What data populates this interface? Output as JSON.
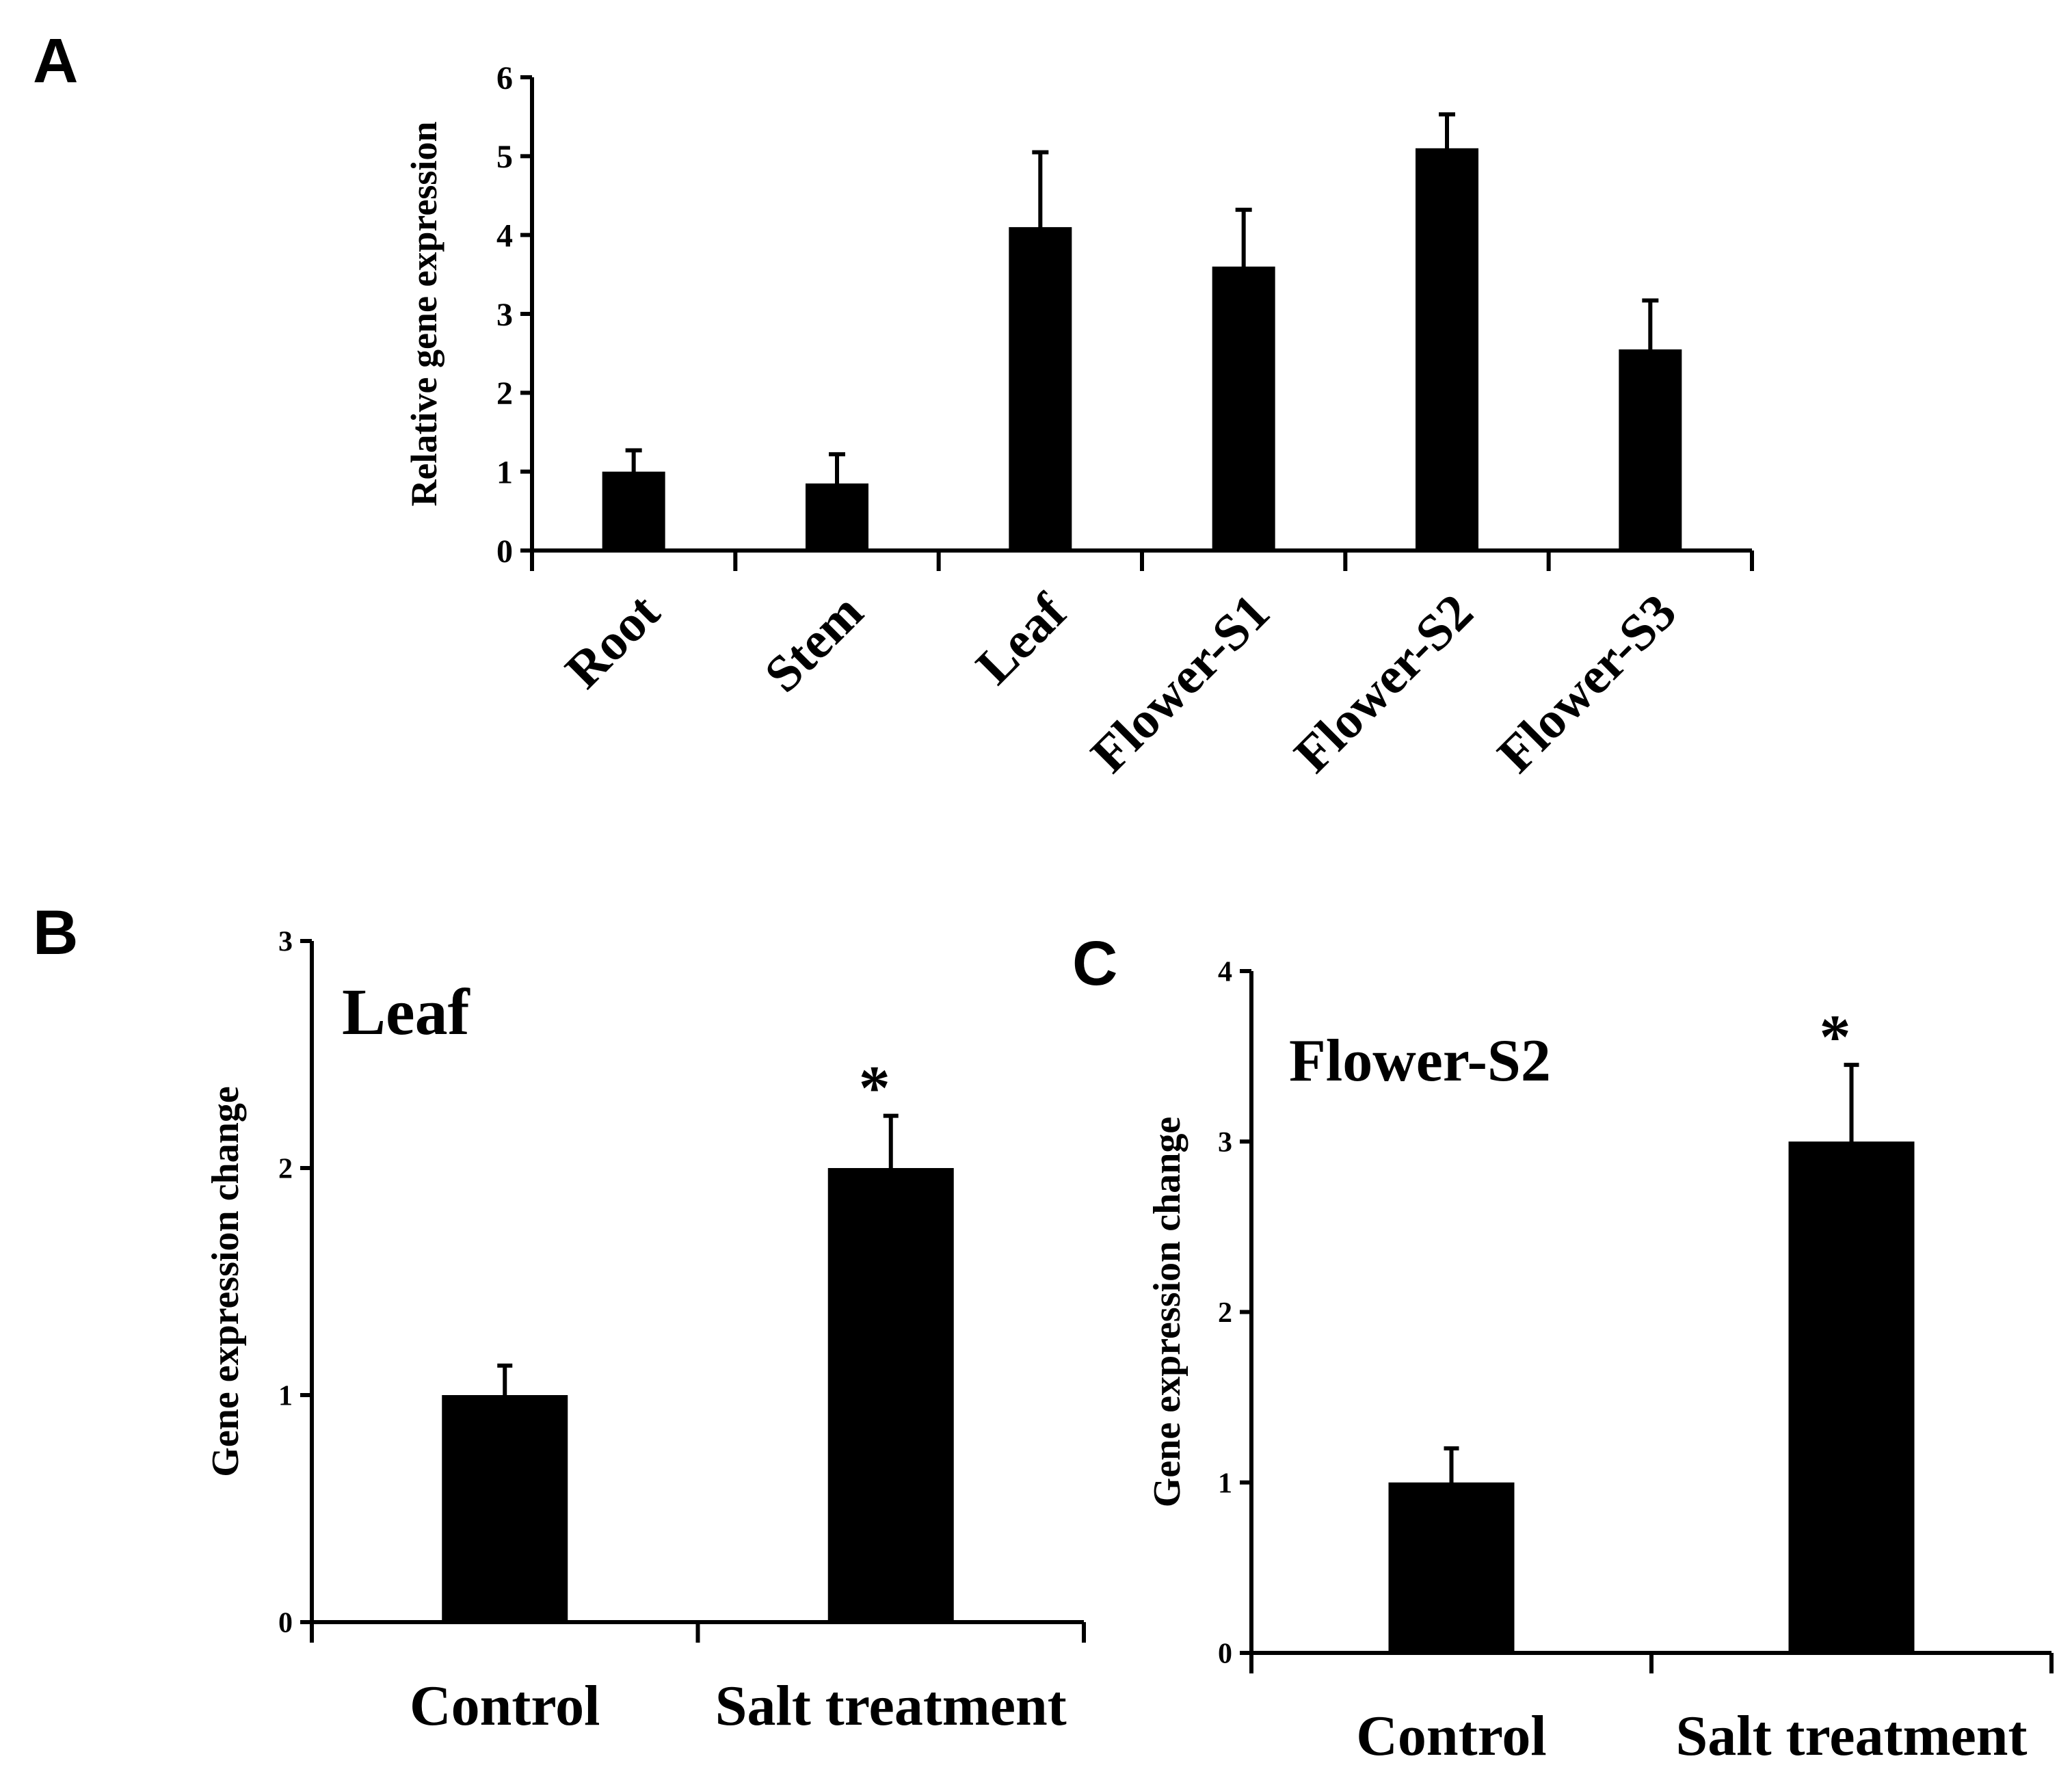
{
  "panels": {
    "A": {
      "letter": "A"
    },
    "B": {
      "letter": "B"
    },
    "C": {
      "letter": "C"
    }
  },
  "chart_data": [
    {
      "type": "bar",
      "panel": "A",
      "title": "",
      "xlabel": "",
      "ylabel": "Relative gene expression",
      "categories": [
        "Root",
        "Stem",
        "Leaf",
        "Flower-S1",
        "Flower-S2",
        "Flower-S3"
      ],
      "values": [
        1.0,
        0.85,
        4.1,
        3.6,
        5.1,
        2.55
      ],
      "errors": [
        0.27,
        0.37,
        0.95,
        0.72,
        0.43,
        0.62
      ],
      "annotations": [
        "",
        "",
        "",
        "",
        "",
        ""
      ],
      "ylim": [
        0,
        6
      ],
      "yticks": [
        "0",
        "1",
        "2",
        "3",
        "4",
        "5",
        "6"
      ],
      "tick_label_rotation": -45,
      "bar_color": "#000000"
    },
    {
      "type": "bar",
      "panel": "B",
      "title": "Leaf",
      "xlabel": "",
      "ylabel": "Gene expression change",
      "categories": [
        "Control",
        "Salt treatment"
      ],
      "values": [
        1.0,
        2.0
      ],
      "errors": [
        0.13,
        0.23
      ],
      "annotations": [
        "",
        "*"
      ],
      "ylim": [
        0,
        3
      ],
      "yticks": [
        "0",
        "1",
        "2",
        "3"
      ],
      "bar_color": "#000000"
    },
    {
      "type": "bar",
      "panel": "C",
      "title": "Flower-S2",
      "xlabel": "",
      "ylabel": "Gene expression change",
      "categories": [
        "Control",
        "Salt treatment"
      ],
      "values": [
        1.0,
        3.0
      ],
      "errors": [
        0.2,
        0.45
      ],
      "annotations": [
        "",
        "*"
      ],
      "ylim": [
        0,
        4
      ],
      "yticks": [
        "0",
        "1",
        "2",
        "3",
        "4"
      ],
      "bar_color": "#000000"
    }
  ]
}
